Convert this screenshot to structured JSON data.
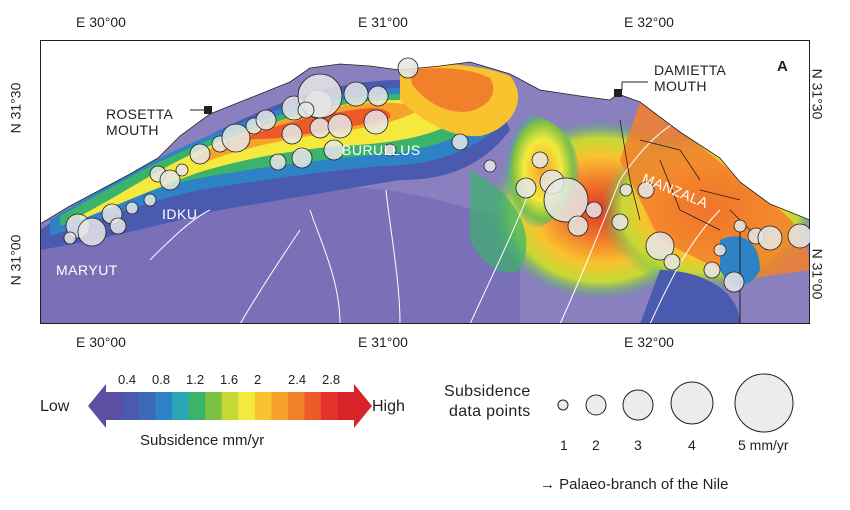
{
  "map": {
    "lon_ticks_top": [
      "E 30°00",
      "E 31°00",
      "E 32°00"
    ],
    "lon_ticks_bottom": [
      "E 30°00",
      "E 31°00",
      "E 32°00"
    ],
    "lat_ticks_left": [
      "N 31°30",
      "N 31°00"
    ],
    "lat_ticks_right": [
      "N 31°30",
      "N 31°00"
    ],
    "places": {
      "rosetta": [
        "ROSETTA",
        "MOUTH"
      ],
      "damietta": [
        "DAMIETTA",
        "MOUTH"
      ],
      "burullus": "BURULLUS",
      "idku": "IDKU",
      "maryut": "MARYUT",
      "manzala": "MANZALA"
    },
    "north_arrow": "A"
  },
  "legend": {
    "low": "Low",
    "high": "High",
    "scale_ticks": [
      "0.4",
      "0.8",
      "1.2",
      "1.6",
      "2",
      "2.4",
      "2.8"
    ],
    "scale_title": "Subsidence mm/yr",
    "scale_colors": [
      "#5a4fa3",
      "#4a5aae",
      "#3c6ab8",
      "#2d83c5",
      "#2aa6b7",
      "#3cb36a",
      "#7dc142",
      "#c4d936",
      "#f4ea3e",
      "#f9c32f",
      "#f7a22b",
      "#f2802b",
      "#ec5a2a",
      "#e3332a",
      "#d9232a"
    ],
    "points_title": [
      "Subsidence",
      "data points"
    ],
    "points_values": [
      "1",
      "2",
      "3",
      "4",
      "5 mm/yr"
    ],
    "palaeo_note": "Palaeo-branch of the Nile"
  }
}
